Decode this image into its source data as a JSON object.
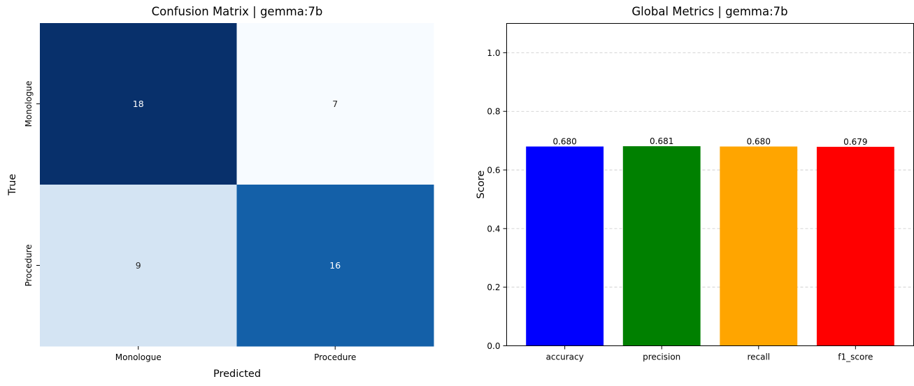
{
  "chart_data": [
    {
      "type": "heatmap",
      "title": "Confusion Matrix | gemma:7b",
      "xlabel": "Predicted",
      "ylabel": "True",
      "x_categories": [
        "Monologue",
        "Procedure"
      ],
      "y_categories": [
        "Monologue",
        "Procedure"
      ],
      "values": [
        [
          18,
          7
        ],
        [
          9,
          16
        ]
      ],
      "colormap": "Blues",
      "colors": {
        "18": "#08306b",
        "7": "#f7fbff",
        "9": "#d4e4f3",
        "16": "#1460a8"
      },
      "grid": false,
      "colorbar": false
    },
    {
      "type": "bar",
      "title": "Global Metrics | gemma:7b",
      "xlabel": "",
      "ylabel": "Score",
      "categories": [
        "accuracy",
        "precision",
        "recall",
        "f1_score"
      ],
      "values": [
        0.68,
        0.681,
        0.68,
        0.679
      ],
      "value_labels": [
        "0.680",
        "0.681",
        "0.680",
        "0.679"
      ],
      "colors": [
        "#0000ff",
        "#008000",
        "#ffa500",
        "#ff0000"
      ],
      "ylim": [
        0,
        1.1
      ],
      "yticks": [
        0.0,
        0.2,
        0.4,
        0.6,
        0.8,
        1.0
      ],
      "ytick_labels": [
        "0.0",
        "0.2",
        "0.4",
        "0.6",
        "0.8",
        "1.0"
      ],
      "grid": "y-dashed"
    }
  ]
}
